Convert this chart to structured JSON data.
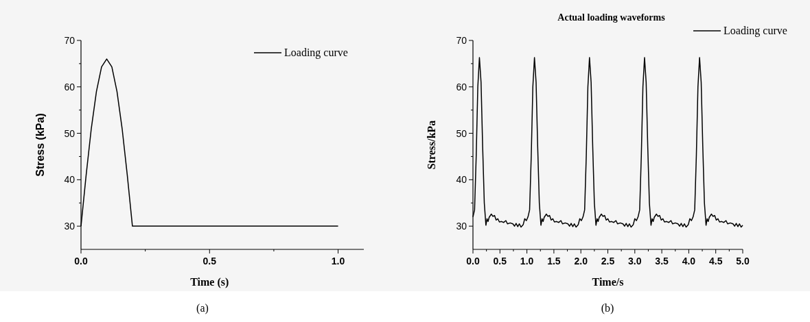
{
  "chart_data": [
    {
      "type": "line",
      "xlabel": "Time (s)",
      "ylabel": "Stress (kPa)",
      "legend": "top right",
      "annotations": [
        "(a)"
      ],
      "xlim": [
        0,
        1.1
      ],
      "ylim": [
        25,
        70
      ],
      "xticks": [
        {
          "value": 0,
          "label": "0.0"
        },
        0.5,
        {
          "value": 1,
          "label": "1.0"
        }
      ],
      "yticks": [
        30,
        40,
        50,
        60,
        70
      ],
      "series": [
        {
          "name": "Loading curve",
          "color": "#000000",
          "x": [
            0,
            0.02,
            0.04,
            0.06,
            0.08,
            0.1,
            0.12,
            0.14,
            0.16,
            0.18,
            0.2,
            1.0
          ],
          "values": [
            30,
            41,
            51,
            59,
            64.3,
            66,
            64.3,
            59,
            51,
            41,
            30,
            30
          ]
        }
      ]
    },
    {
      "type": "line",
      "title": "Actual loading waveforms",
      "xlabel": "Time/s",
      "ylabel": "Stress/kPa",
      "legend": "top right",
      "annotations": [
        "(b)"
      ],
      "xlim": [
        0,
        5
      ],
      "ylim": [
        25,
        70
      ],
      "xticks": [
        {
          "value": 0,
          "label": "0.0"
        },
        0.5,
        {
          "value": 1,
          "label": "1.0"
        },
        1.5,
        {
          "value": 2,
          "label": "2.0"
        },
        2.5,
        {
          "value": 3,
          "label": "3.0"
        },
        3.5,
        {
          "value": 4,
          "label": "4.0"
        },
        4.5,
        {
          "value": 5,
          "label": "5.0"
        }
      ],
      "yticks": [
        30,
        40,
        50,
        60,
        70
      ],
      "series": [
        {
          "name": "Loading curve",
          "color": "#000000",
          "x": [
            0,
            0.03,
            0.06,
            0.09,
            0.12,
            0.15,
            0.18,
            0.21,
            0.24,
            0.26,
            0.28,
            0.3,
            0.34,
            0.37,
            0.4,
            0.43,
            0.46,
            0.49,
            0.53,
            0.57,
            0.61,
            0.64,
            0.69,
            0.74,
            0.77,
            0.8,
            0.83,
            0.86,
            0.89,
            0.93,
            0.96,
            0.99,
            1.02,
            1.05,
            1.08,
            1.11,
            1.14,
            1.17,
            1.2,
            1.23,
            1.26,
            1.28,
            1.3,
            1.32,
            1.36,
            1.39,
            1.42,
            1.45,
            1.48,
            1.51,
            1.55,
            1.59,
            1.63,
            1.66,
            1.71,
            1.76,
            1.79,
            1.82,
            1.85,
            1.88,
            1.91,
            1.95,
            1.98,
            2.01,
            2.04,
            2.07,
            2.1,
            2.13,
            2.16,
            2.19,
            2.22,
            2.25,
            2.28,
            2.3,
            2.32,
            2.34,
            2.38,
            2.41,
            2.44,
            2.47,
            2.5,
            2.53,
            2.57,
            2.61,
            2.65,
            2.68,
            2.73,
            2.78,
            2.81,
            2.84,
            2.87,
            2.9,
            2.93,
            2.97,
            3.0,
            3.03,
            3.06,
            3.09,
            3.12,
            3.15,
            3.18,
            3.21,
            3.24,
            3.27,
            3.3,
            3.32,
            3.34,
            3.36,
            3.4,
            3.43,
            3.46,
            3.49,
            3.52,
            3.55,
            3.59,
            3.63,
            3.67,
            3.7,
            3.75,
            3.8,
            3.83,
            3.86,
            3.89,
            3.92,
            3.95,
            3.99,
            4.02,
            4.05,
            4.08,
            4.11,
            4.14,
            4.17,
            4.2,
            4.23,
            4.26,
            4.29,
            4.32,
            4.34,
            4.36,
            4.38,
            4.42,
            4.45,
            4.48,
            4.51,
            4.54,
            4.57,
            4.61,
            4.65,
            4.69,
            4.72,
            4.77,
            4.82,
            4.85,
            4.88,
            4.91,
            4.94,
            4.97,
            5.0
          ],
          "values": [
            32,
            33.5,
            45,
            60,
            66.3,
            61,
            47,
            35,
            30.2,
            31.6,
            31,
            31.9,
            32.6,
            32.1,
            32.3,
            31.3,
            31.6,
            30.9,
            31,
            30.8,
            31.2,
            30.5,
            30.7,
            30.5,
            30,
            30.6,
            29.9,
            30.5,
            29.8,
            30.3,
            31.6,
            31.2,
            32,
            33.5,
            45,
            60,
            66.3,
            61,
            47,
            35,
            30.2,
            31.6,
            31,
            31.9,
            32.6,
            32.1,
            32.3,
            31.3,
            31.6,
            30.9,
            31,
            30.8,
            31.2,
            30.5,
            30.7,
            30.5,
            30,
            30.6,
            29.9,
            30.5,
            29.8,
            30.3,
            31.6,
            31.2,
            32,
            33.5,
            45,
            60,
            66.3,
            61,
            47,
            35,
            30.2,
            31.6,
            31,
            31.9,
            32.6,
            32.1,
            32.3,
            31.3,
            31.6,
            30.9,
            31,
            30.8,
            31.2,
            30.5,
            30.7,
            30.5,
            30,
            30.6,
            29.9,
            30.5,
            29.8,
            30.3,
            31.6,
            31.2,
            32,
            33.5,
            45,
            60,
            66.3,
            61,
            47,
            35,
            30.2,
            31.6,
            31,
            31.9,
            32.6,
            32.1,
            32.3,
            31.3,
            31.6,
            30.9,
            31,
            30.8,
            31.2,
            30.5,
            30.7,
            30.5,
            30,
            30.6,
            29.9,
            30.5,
            29.8,
            30.3,
            31.6,
            31.2,
            32,
            33.5,
            45,
            60,
            66.3,
            61,
            47,
            35,
            30.2,
            31.6,
            31,
            31.9,
            32.6,
            32.1,
            32.3,
            31.3,
            31.6,
            30.9,
            31,
            30.8,
            31.2,
            30.5,
            30.7,
            30.5,
            30,
            30.6,
            29.9,
            30.5,
            29.8,
            30.2
          ]
        }
      ]
    }
  ]
}
